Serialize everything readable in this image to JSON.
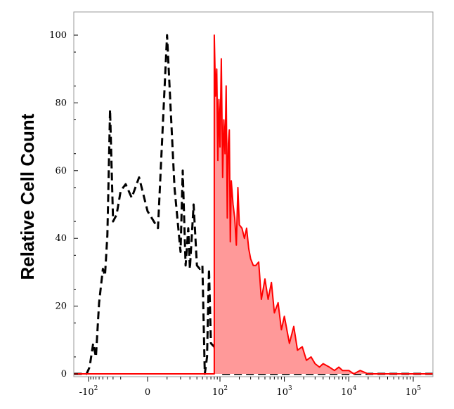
{
  "chart_data": {
    "type": "area",
    "title": "",
    "xlabel": "",
    "ylabel": "Relative Cell Count",
    "xscale": "biexponential",
    "xlim": [
      -200,
      200000
    ],
    "ylim": [
      0,
      100
    ],
    "grid": false,
    "legend": "none",
    "y_ticks": [
      {
        "value": 0,
        "label": "0"
      },
      {
        "value": 20,
        "label": "20"
      },
      {
        "value": 40,
        "label": "40"
      },
      {
        "value": 60,
        "label": "60"
      },
      {
        "value": 80,
        "label": "80"
      },
      {
        "value": 100,
        "label": "100"
      }
    ],
    "x_ticks": [
      {
        "value": -100,
        "base": "-10",
        "exp": "2"
      },
      {
        "value": 0,
        "base": "0",
        "exp": ""
      },
      {
        "value": 100,
        "base": "10",
        "exp": "2"
      },
      {
        "value": 1000,
        "base": "10",
        "exp": "3"
      },
      {
        "value": 10000,
        "base": "10",
        "exp": "4"
      },
      {
        "value": 100000,
        "base": "10",
        "exp": "5"
      }
    ],
    "series": [
      {
        "style": "dashed-line",
        "color": "#000000",
        "x": [
          -200,
          -110,
          -95,
          -80,
          -70,
          -60,
          -50,
          -45,
          -40,
          -35,
          -30,
          -25,
          -20,
          -15,
          -10,
          -5,
          0,
          5,
          10,
          15,
          20,
          22,
          25,
          28,
          30,
          35,
          40,
          45,
          50,
          55,
          60,
          65,
          70,
          80,
          90,
          100,
          200000
        ],
        "y": [
          0,
          0,
          2,
          9,
          5,
          21,
          31,
          29,
          41,
          78,
          45,
          47,
          54,
          56,
          52,
          58,
          48,
          43,
          100,
          55,
          36,
          60,
          32,
          43,
          31,
          50,
          32,
          31,
          32,
          0,
          5,
          31,
          9,
          8,
          4,
          0,
          0
        ]
      },
      {
        "style": "filled-line",
        "color": "#ff0000",
        "fill": "#ff9999",
        "x": [
          -200,
          80,
          80,
          84,
          88,
          92,
          96,
          100,
          105,
          110,
          115,
          120,
          125,
          130,
          135,
          140,
          145,
          150,
          160,
          170,
          180,
          190,
          200,
          220,
          240,
          260,
          280,
          300,
          330,
          360,
          400,
          440,
          500,
          560,
          630,
          700,
          800,
          900,
          1000,
          1200,
          1400,
          1600,
          1900,
          2200,
          2600,
          3000,
          3500,
          4000,
          5000,
          6000,
          7000,
          8000,
          10000,
          12000,
          15000,
          20000,
          30000,
          50000,
          200000
        ],
        "y": [
          0,
          0,
          100,
          82,
          90,
          63,
          81,
          67,
          93,
          58,
          75,
          65,
          85,
          46,
          68,
          72,
          39,
          57,
          50,
          46,
          38,
          55,
          44,
          43,
          40,
          43,
          37,
          34,
          32,
          32,
          33,
          22,
          28,
          22,
          27,
          18,
          21,
          13,
          17,
          9,
          14,
          7,
          8,
          4,
          5,
          3,
          2,
          3,
          2,
          1,
          2,
          1,
          1,
          0,
          1,
          0,
          0,
          0,
          0
        ]
      }
    ]
  }
}
